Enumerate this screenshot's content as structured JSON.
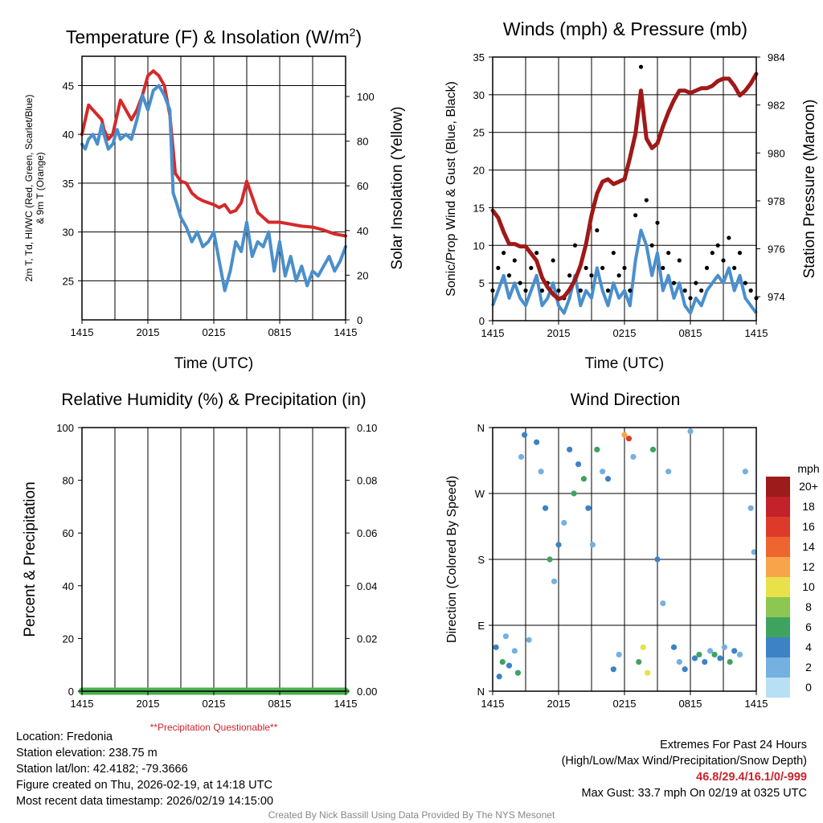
{
  "chart_data": [
    {
      "type": "line",
      "title": "Temperature (F) & Insolation (W/m2)",
      "title_main": "Temperature (F) & Insolation (W/m",
      "title_sup": "2",
      "title_end": ")",
      "xlabel": "Time (UTC)",
      "ylabel_line1": "2m T, Td, HI/WC (Red, Green, Scarlet/Blue)",
      "ylabel_line2": "& 9m T (Orange)",
      "y2label": "Solar Insolation (Yellow)",
      "x_ticks": [
        "1415",
        "2015",
        "0215",
        "0815",
        "1415"
      ],
      "ylim": [
        21,
        48
      ],
      "yticks": [
        "25",
        "30",
        "35",
        "40",
        "45"
      ],
      "y2lim": [
        0,
        118
      ],
      "y2ticks": [
        "0",
        "20",
        "40",
        "60",
        "80",
        "100"
      ],
      "series": [
        {
          "name": "2m Temperature",
          "color": "#d42a2a",
          "x": [
            0,
            0.3,
            0.6,
            1,
            1.4,
            1.8,
            2,
            2.4,
            2.8,
            3.2,
            3.5,
            4,
            4.5,
            5,
            5.5,
            6,
            6.5,
            7,
            7.5,
            8,
            8.5,
            9,
            9.5,
            10,
            10.5,
            11,
            11.5,
            12,
            12.5,
            13,
            13.5,
            14,
            14.5,
            15,
            16,
            17,
            18,
            19,
            20,
            21,
            22,
            23,
            24
          ],
          "values": [
            40,
            41.5,
            43,
            42.5,
            42,
            41.5,
            40.5,
            39.5,
            40,
            42,
            43.5,
            42.5,
            41.5,
            42.5,
            44,
            46,
            46.5,
            46,
            45,
            42,
            36,
            35.2,
            35,
            34,
            33.5,
            33.2,
            33,
            32.8,
            32.5,
            32.8,
            32,
            32.2,
            33,
            35.2,
            32,
            31,
            31,
            30.8,
            30.6,
            30.5,
            30.2,
            29.8,
            29.6
          ]
        },
        {
          "name": "HI/WC",
          "color": "#4a8fcc",
          "x": [
            0,
            0.3,
            0.6,
            1,
            1.4,
            1.8,
            2,
            2.4,
            2.8,
            3.2,
            3.5,
            4,
            4.5,
            5,
            5.5,
            6,
            6.5,
            7,
            7.5,
            8,
            8.3,
            8.6,
            9,
            9.5,
            10,
            10.5,
            11,
            11.5,
            12,
            12.5,
            13,
            13.5,
            14,
            14.5,
            15,
            15.5,
            16,
            16.5,
            17,
            17.5,
            18,
            18.5,
            19,
            19.5,
            20,
            20.5,
            21,
            21.5,
            22,
            22.5,
            23,
            23.5,
            24
          ],
          "values": [
            39,
            38.5,
            39.5,
            40,
            39,
            41,
            40,
            38.5,
            39,
            40.5,
            39.5,
            40,
            39.5,
            41.5,
            44,
            42.5,
            44.5,
            45,
            44,
            42.5,
            34,
            33,
            31.5,
            30.5,
            29,
            30,
            28.5,
            29,
            30,
            27,
            24,
            26,
            29,
            28,
            31,
            27.5,
            29,
            28.5,
            30,
            26,
            29,
            25.5,
            27.5,
            25,
            26.5,
            24.5,
            26,
            25.5,
            26.5,
            27.5,
            26,
            27,
            28.5
          ]
        },
        {
          "name": "Solar Insolation",
          "color": "#e8e040",
          "x": [
            0,
            24
          ],
          "values": [
            0,
            0
          ]
        }
      ]
    },
    {
      "type": "line",
      "title": "Winds (mph) & Pressure (mb)",
      "xlabel": "Time (UTC)",
      "ylabel": "Sonic/Prop Wind & Gust (Blue, Black)",
      "y2label": "Station Pressure (Maroon)",
      "x_ticks": [
        "1415",
        "2015",
        "0215",
        "0815",
        "1415"
      ],
      "ylim": [
        0,
        35
      ],
      "yticks": [
        "0",
        "5",
        "10",
        "15",
        "20",
        "25",
        "30",
        "35"
      ],
      "y2lim": [
        973.0,
        984.0
      ],
      "y2ticks": [
        "974",
        "976",
        "978",
        "980",
        "982",
        "984"
      ],
      "series": [
        {
          "name": "Wind",
          "color": "#4a8fcc",
          "x": [
            0,
            0.5,
            1,
            1.5,
            2,
            2.5,
            3,
            3.5,
            4,
            4.5,
            5,
            5.5,
            6,
            6.5,
            7,
            7.5,
            8,
            8.5,
            9,
            9.5,
            10,
            10.5,
            11,
            11.5,
            12,
            12.5,
            13,
            13.5,
            14,
            14.5,
            15,
            15.5,
            16,
            16.5,
            17,
            17.5,
            18,
            18.5,
            19,
            19.5,
            20,
            20.5,
            21,
            21.5,
            22,
            22.5,
            23,
            23.5,
            24
          ],
          "values": [
            2,
            4,
            6,
            3,
            5,
            3,
            2,
            4,
            6,
            2,
            3,
            5,
            2,
            1,
            3,
            6,
            2,
            4,
            3,
            7,
            4,
            2,
            5,
            3,
            4,
            2,
            8,
            12,
            10,
            6,
            9,
            4,
            6,
            3,
            5,
            2,
            1,
            3,
            2,
            4,
            5,
            6,
            5,
            7,
            4,
            6,
            3,
            2,
            1
          ]
        },
        {
          "name": "Gust",
          "color": "#000000",
          "x": [
            0,
            0.5,
            1,
            1.5,
            2,
            2.5,
            3,
            3.5,
            4,
            4.5,
            5,
            5.5,
            6,
            6.5,
            7,
            7.5,
            8,
            8.5,
            9,
            9.5,
            10,
            10.5,
            11,
            11.5,
            12,
            12.5,
            13,
            13.5,
            14,
            14.5,
            15,
            15.5,
            16,
            16.5,
            17,
            17.5,
            18,
            18.5,
            19,
            19.5,
            20,
            20.5,
            21,
            21.5,
            22,
            22.5,
            23,
            23.5,
            24
          ],
          "values": [
            4,
            7,
            9,
            6,
            8,
            5,
            4,
            7,
            9,
            4,
            5,
            8,
            4,
            3,
            6,
            10,
            4,
            7,
            6,
            12,
            7,
            4,
            9,
            6,
            7,
            4,
            14,
            33.7,
            16,
            10,
            13,
            7,
            9,
            5,
            8,
            4,
            3,
            5,
            4,
            7,
            9,
            10,
            8,
            11,
            7,
            9,
            5,
            4,
            3
          ]
        },
        {
          "name": "Station Pressure",
          "color": "#a01818",
          "x": [
            0,
            0.5,
            1,
            1.5,
            2,
            2.5,
            3,
            3.5,
            4,
            4.5,
            5,
            5.5,
            6,
            6.5,
            7,
            7.5,
            8,
            8.5,
            9,
            9.5,
            10,
            10.5,
            11,
            11.5,
            12,
            12.5,
            13,
            13.5,
            14,
            14.5,
            15,
            15.5,
            16,
            16.5,
            17,
            17.5,
            18,
            18.5,
            19,
            19.5,
            20,
            20.5,
            21,
            21.5,
            22,
            22.5,
            23,
            23.5,
            24
          ],
          "values": [
            977.6,
            977.3,
            976.7,
            976.2,
            976.2,
            976.1,
            976.1,
            975.8,
            975.5,
            974.8,
            974.4,
            974.1,
            973.9,
            974.0,
            974.3,
            974.7,
            975.3,
            976.2,
            977.4,
            978.3,
            978.8,
            978.9,
            978.7,
            978.8,
            978.9,
            979.8,
            980.8,
            982.6,
            980.6,
            980.2,
            980.4,
            981.1,
            981.7,
            982.2,
            982.6,
            982.6,
            982.5,
            982.6,
            982.7,
            982.7,
            982.8,
            983.0,
            983.1,
            983.1,
            982.8,
            982.4,
            982.6,
            982.9,
            983.3
          ]
        }
      ]
    },
    {
      "type": "area",
      "title": "Relative Humidity (%) & Precipitation (in)",
      "xlabel": "",
      "ylabel": "Percent & Precipitation",
      "x_ticks": [
        "1415",
        "2015",
        "0215",
        "0815",
        "1415"
      ],
      "ylim": [
        0,
        100
      ],
      "yticks": [
        "0",
        "20",
        "40",
        "60",
        "80",
        "100"
      ],
      "y2lim": [
        0,
        0.1
      ],
      "y2ticks": [
        "0.00",
        "0.02",
        "0.04",
        "0.06",
        "0.08",
        "0.10"
      ],
      "note": "**Precipitation Questionable**",
      "series": [
        {
          "name": "Precipitation",
          "color": "#4caf50",
          "x": [
            0,
            24
          ],
          "values": [
            0,
            0
          ]
        }
      ]
    },
    {
      "type": "scatter",
      "title": "Wind Direction",
      "xlabel": "",
      "ylabel": "Direction (Colored By Speed)",
      "x_ticks": [
        "1415",
        "2015",
        "0215",
        "0815",
        "1415"
      ],
      "y_ticks": [
        "N",
        "E",
        "S",
        "W",
        "N"
      ],
      "ylim": [
        0,
        360
      ],
      "legend_title": "mph",
      "legend_labels": [
        "20+",
        "18",
        "16",
        "14",
        "12",
        "10",
        "8",
        "6",
        "4",
        "2",
        "0"
      ],
      "legend_colors": [
        "#9e1b1b",
        "#c4222a",
        "#de3a2a",
        "#ee6530",
        "#f7a44a",
        "#e8e14a",
        "#8cc751",
        "#3fa360",
        "#3d82c4",
        "#74b0e0",
        "#b8e0f5"
      ],
      "points": [
        [
          0.3,
          60,
          4
        ],
        [
          0.6,
          20,
          4
        ],
        [
          0.9,
          40,
          6
        ],
        [
          1.2,
          75,
          2
        ],
        [
          1.5,
          35,
          4
        ],
        [
          2.0,
          55,
          2
        ],
        [
          2.3,
          25,
          6
        ],
        [
          2.6,
          320,
          2
        ],
        [
          2.9,
          350,
          4
        ],
        [
          3.3,
          70,
          2
        ],
        [
          4.0,
          340,
          4
        ],
        [
          4.4,
          300,
          2
        ],
        [
          4.8,
          250,
          4
        ],
        [
          5.2,
          180,
          6
        ],
        [
          5.6,
          150,
          2
        ],
        [
          6.0,
          200,
          4
        ],
        [
          6.5,
          230,
          2
        ],
        [
          7.0,
          330,
          4
        ],
        [
          7.4,
          270,
          6
        ],
        [
          7.8,
          310,
          4
        ],
        [
          8.3,
          290,
          6
        ],
        [
          8.7,
          250,
          4
        ],
        [
          9.1,
          200,
          2
        ],
        [
          9.5,
          330,
          6
        ],
        [
          10.0,
          300,
          2
        ],
        [
          10.5,
          290,
          4
        ],
        [
          11.0,
          30,
          4
        ],
        [
          11.5,
          50,
          2
        ],
        [
          12.0,
          350,
          12
        ],
        [
          12.4,
          345,
          16
        ],
        [
          12.8,
          320,
          2
        ],
        [
          13.3,
          40,
          6
        ],
        [
          13.7,
          60,
          10
        ],
        [
          14.1,
          25,
          10
        ],
        [
          14.6,
          330,
          6
        ],
        [
          15.0,
          180,
          4
        ],
        [
          15.5,
          120,
          2
        ],
        [
          16.0,
          300,
          2
        ],
        [
          16.5,
          60,
          4
        ],
        [
          17.0,
          40,
          2
        ],
        [
          17.5,
          30,
          4
        ],
        [
          18.0,
          355,
          2
        ],
        [
          18.4,
          45,
          4
        ],
        [
          18.8,
          50,
          6
        ],
        [
          19.3,
          40,
          4
        ],
        [
          19.8,
          55,
          2
        ],
        [
          20.2,
          50,
          6
        ],
        [
          20.7,
          45,
          4
        ],
        [
          21.1,
          60,
          2
        ],
        [
          21.6,
          40,
          6
        ],
        [
          22.0,
          55,
          4
        ],
        [
          22.5,
          50,
          2
        ],
        [
          23.0,
          300,
          2
        ],
        [
          23.5,
          250,
          2
        ],
        [
          23.8,
          190,
          2
        ]
      ]
    }
  ],
  "footer": {
    "location": "Location: Fredonia",
    "elevation": "Station elevation: 238.75 m",
    "latlon": "Station lat/lon: 42.4182; -79.3666",
    "created": "Figure created on Thu, 2026-02-19, at 14:18 UTC",
    "recent": "Most recent data timestamp: 2026/02/19 14:15:00",
    "extremes_title": "Extremes For Past 24 Hours",
    "extremes_legend": "(High/Low/Max Wind/Precipitation/Snow Depth)",
    "extremes_values": "46.8/29.4/16.1/0/-999",
    "max_gust": "Max Gust: 33.7 mph On 02/19 at 0325 UTC",
    "credit": "Created By Nick Bassill Using Data Provided By The NYS Mesonet"
  }
}
